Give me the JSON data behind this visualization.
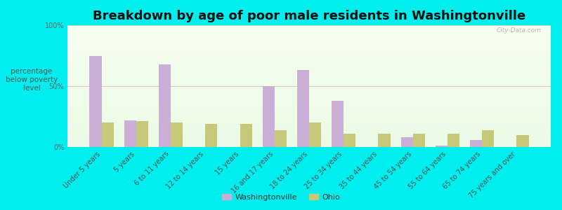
{
  "title": "Breakdown by age of poor male residents in Washingtonville",
  "ylabel": "percentage\nbelow poverty\nlevel",
  "categories": [
    "Under 5 years",
    "5 years",
    "6 to 11 years",
    "12 to 14 years",
    "15 years",
    "16 and 17 years",
    "18 to 24 years",
    "25 to 34 years",
    "35 to 44 years",
    "45 to 54 years",
    "55 to 64 years",
    "65 to 74 years",
    "75 years and over"
  ],
  "washingtonville": [
    75,
    22,
    68,
    0,
    0,
    50,
    63,
    38,
    0,
    8,
    1,
    6,
    0
  ],
  "ohio": [
    20,
    21,
    20,
    19,
    19,
    14,
    20,
    11,
    11,
    11,
    11,
    14,
    10
  ],
  "bar_color_wash": "#c9aed6",
  "bar_color_ohio": "#c8c87a",
  "outer_bg": "#00eeee",
  "ylim": [
    0,
    100
  ],
  "yticks": [
    0,
    50,
    100
  ],
  "ytick_labels": [
    "0%",
    "50%",
    "100%"
  ],
  "title_fontsize": 13,
  "ylabel_fontsize": 7.5,
  "tick_label_fontsize": 7,
  "legend_labels": [
    "Washingtonville",
    "Ohio"
  ],
  "watermark": "City-Data.com"
}
